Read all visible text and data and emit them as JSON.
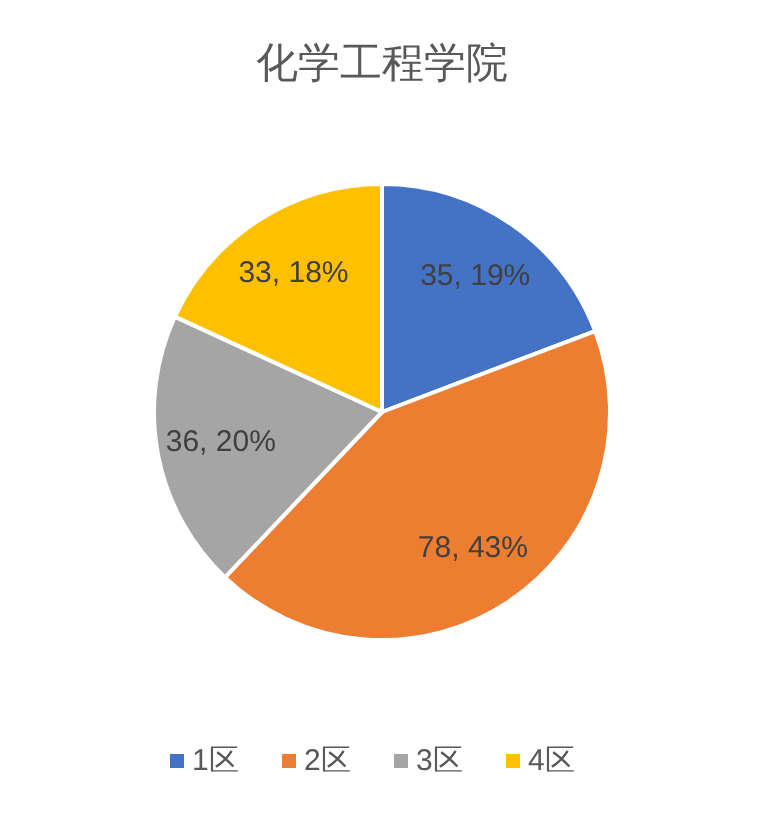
{
  "chart_data": {
    "type": "pie",
    "title": "化学工程学院",
    "categories": [
      "1区",
      "2区",
      "3区",
      "4区"
    ],
    "values": [
      35,
      78,
      36,
      33
    ],
    "colors": [
      "#4472c4",
      "#ed7d31",
      "#a5a5a5",
      "#ffc000"
    ],
    "value_labels": [
      "35, 19%",
      "78, 43%",
      "36, 20%",
      "33, 18%"
    ],
    "legend": "bottom"
  }
}
